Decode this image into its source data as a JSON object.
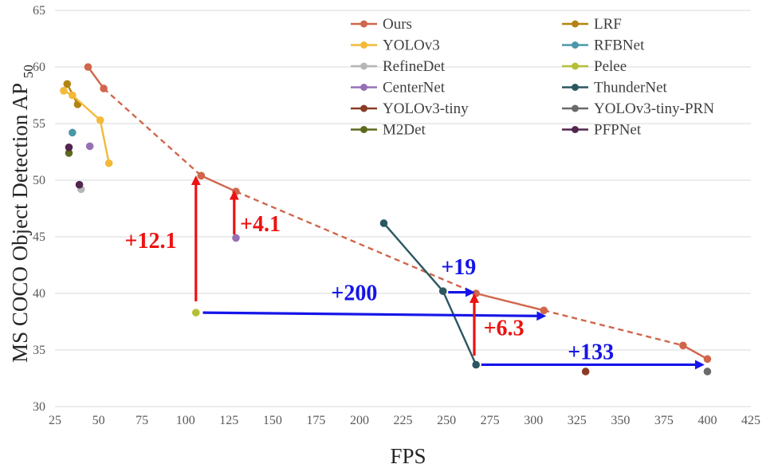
{
  "chart_data": {
    "type": "scatter",
    "title": "",
    "xlabel": "FPS",
    "ylabel": "MS COCO Object Detection AP",
    "ylabel_subscript": "50",
    "xlim": [
      25,
      425
    ],
    "ylim": [
      30,
      65
    ],
    "xticks": [
      25,
      50,
      75,
      100,
      125,
      150,
      175,
      200,
      225,
      250,
      275,
      300,
      325,
      350,
      375,
      400,
      425
    ],
    "yticks": [
      30,
      35,
      40,
      45,
      50,
      55,
      60,
      65
    ],
    "grid": true,
    "legend_position": "top-right",
    "series": [
      {
        "name": "Ours",
        "color": "#d0664b",
        "connect": "mixed",
        "points": [
          {
            "x": 44,
            "y": 60.0
          },
          {
            "x": 53,
            "y": 58.1
          },
          {
            "x": 109,
            "y": 50.4
          },
          {
            "x": 129,
            "y": 49.0
          },
          {
            "x": 267,
            "y": 40.0
          },
          {
            "x": 306,
            "y": 38.5
          },
          {
            "x": 386,
            "y": 35.4
          },
          {
            "x": 400,
            "y": 34.2
          }
        ],
        "dashed_segments": [
          [
            1,
            2
          ],
          [
            3,
            4
          ],
          [
            5,
            6
          ]
        ]
      },
      {
        "name": "LRF",
        "color": "#b38412",
        "connect": "solid",
        "points": [
          {
            "x": 32,
            "y": 58.5
          },
          {
            "x": 38,
            "y": 56.7
          }
        ]
      },
      {
        "name": "YOLOv3",
        "color": "#f3b938",
        "connect": "solid",
        "points": [
          {
            "x": 30,
            "y": 57.9
          },
          {
            "x": 35,
            "y": 57.5
          },
          {
            "x": 51,
            "y": 55.3
          },
          {
            "x": 56,
            "y": 51.5
          }
        ]
      },
      {
        "name": "RFBNet",
        "color": "#4a97a8",
        "connect": "none",
        "points": [
          {
            "x": 35,
            "y": 54.2
          }
        ]
      },
      {
        "name": "RefineDet",
        "color": "#b6b6b6",
        "connect": "none",
        "points": [
          {
            "x": 40,
            "y": 49.2
          }
        ]
      },
      {
        "name": "Pelee",
        "color": "#b6bf33",
        "connect": "none",
        "points": [
          {
            "x": 106,
            "y": 38.3
          }
        ]
      },
      {
        "name": "CenterNet",
        "color": "#9670b5",
        "connect": "none",
        "points": [
          {
            "x": 45,
            "y": 53.0
          },
          {
            "x": 129,
            "y": 44.9
          }
        ]
      },
      {
        "name": "ThunderNet",
        "color": "#2b5761",
        "connect": "solid",
        "points": [
          {
            "x": 214,
            "y": 46.2
          },
          {
            "x": 248,
            "y": 40.2
          },
          {
            "x": 267,
            "y": 33.7
          }
        ]
      },
      {
        "name": "YOLOv3-tiny",
        "color": "#8a3b26",
        "connect": "none",
        "points": [
          {
            "x": 330,
            "y": 33.1
          }
        ]
      },
      {
        "name": "YOLOv3-tiny-PRN",
        "color": "#6a6a6a",
        "connect": "none",
        "points": [
          {
            "x": 400,
            "y": 33.1
          }
        ]
      },
      {
        "name": "M2Det",
        "color": "#5c6a1e",
        "connect": "none",
        "points": [
          {
            "x": 33,
            "y": 52.4
          }
        ]
      },
      {
        "name": "PFPNet",
        "color": "#52264e",
        "connect": "none",
        "points": [
          {
            "x": 33,
            "y": 52.9
          },
          {
            "x": 39,
            "y": 49.6
          }
        ]
      }
    ],
    "annotations": [
      {
        "text": "+12.1",
        "color": "#ee1111",
        "arrow": {
          "from": [
            106,
            39.3
          ],
          "to": [
            106,
            50.2
          ]
        },
        "label_at": [
          80,
          44.0
        ]
      },
      {
        "text": "+4.1",
        "color": "#ee1111",
        "arrow": {
          "from": [
            128,
            45.2
          ],
          "to": [
            128,
            48.9
          ]
        },
        "label_at": [
          143,
          45.5
        ]
      },
      {
        "text": "+200",
        "color": "#1515e8",
        "arrow": {
          "from": [
            110,
            38.3
          ],
          "to": [
            306,
            38.0
          ]
        },
        "label_at": [
          197,
          39.4
        ]
      },
      {
        "text": "+19",
        "color": "#1515e8",
        "arrow": {
          "from": [
            251,
            40.1
          ],
          "to": [
            265,
            40.1
          ]
        },
        "label_at": [
          257,
          41.7
        ]
      },
      {
        "text": "+6.3",
        "color": "#ee1111",
        "arrow": {
          "from": [
            266,
            34.5
          ],
          "to": [
            266,
            39.8
          ]
        },
        "label_at": [
          283,
          36.3
        ]
      },
      {
        "text": "+133",
        "color": "#1515e8",
        "arrow": {
          "from": [
            270,
            33.7
          ],
          "to": [
            397,
            33.7
          ]
        },
        "label_at": [
          333,
          34.2
        ]
      }
    ]
  }
}
